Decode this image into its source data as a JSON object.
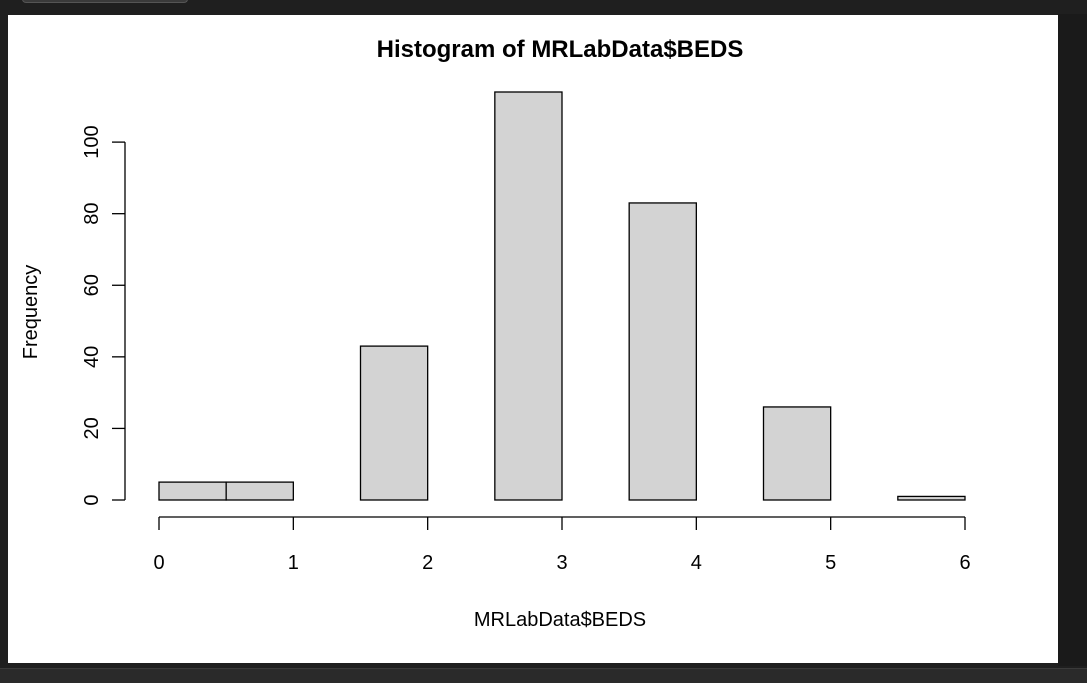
{
  "chart_data": {
    "type": "bar",
    "title": "Histogram of MRLabData$BEDS",
    "xlabel": "MRLabData$BEDS",
    "ylabel": "Frequency",
    "bins": [
      {
        "x0": 0.0,
        "x1": 0.5,
        "value": 5
      },
      {
        "x0": 0.5,
        "x1": 1.0,
        "value": 5
      },
      {
        "x0": 1.0,
        "x1": 1.5,
        "value": 0
      },
      {
        "x0": 1.5,
        "x1": 2.0,
        "value": 43
      },
      {
        "x0": 2.0,
        "x1": 2.5,
        "value": 0
      },
      {
        "x0": 2.5,
        "x1": 3.0,
        "value": 114
      },
      {
        "x0": 3.0,
        "x1": 3.5,
        "value": 0
      },
      {
        "x0": 3.5,
        "x1": 4.0,
        "value": 83
      },
      {
        "x0": 4.0,
        "x1": 4.5,
        "value": 0
      },
      {
        "x0": 4.5,
        "x1": 5.0,
        "value": 26
      },
      {
        "x0": 5.0,
        "x1": 5.5,
        "value": 0
      },
      {
        "x0": 5.5,
        "x1": 6.0,
        "value": 1
      }
    ],
    "xlim": [
      0,
      6
    ],
    "ylim": [
      0,
      114
    ],
    "xticks": [
      "0",
      "1",
      "2",
      "3",
      "4",
      "5",
      "6"
    ],
    "yticks": [
      "0",
      "20",
      "40",
      "60",
      "80",
      "100"
    ],
    "bar_fill": "#d3d3d3",
    "bar_stroke": "#000000",
    "grid": false
  }
}
